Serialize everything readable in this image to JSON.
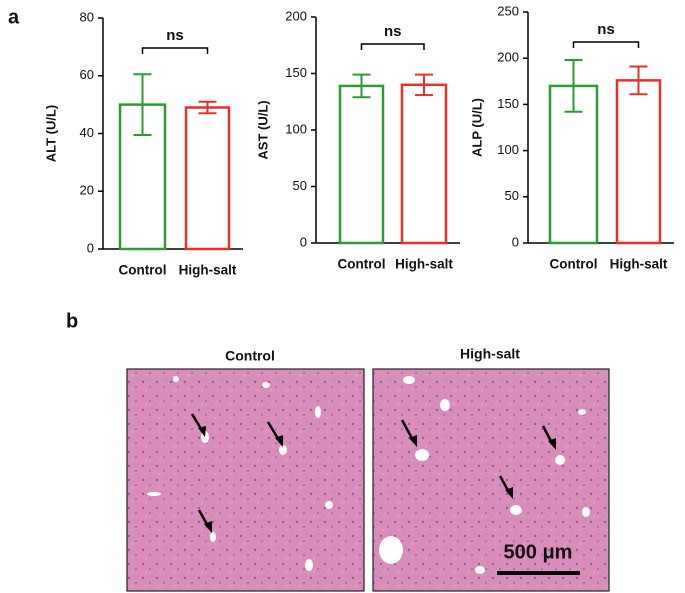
{
  "chart_data": [
    {
      "type": "bar",
      "ylabel": "ALT (U/L)",
      "categories": [
        "Control",
        "High-salt"
      ],
      "values": [
        50,
        49
      ],
      "errors": [
        10.5,
        2
      ],
      "colors": [
        "#2e9a34",
        "#e8302a"
      ],
      "ylim": [
        0,
        80
      ],
      "yticks": [
        0,
        20,
        40,
        60,
        80
      ],
      "annotation": "ns"
    },
    {
      "type": "bar",
      "ylabel": "AST (U/L)",
      "categories": [
        "Control",
        "High-salt"
      ],
      "values": [
        139,
        140
      ],
      "errors": [
        10,
        9
      ],
      "colors": [
        "#2e9a34",
        "#e8302a"
      ],
      "ylim": [
        0,
        200
      ],
      "yticks": [
        0,
        50,
        100,
        150,
        200
      ],
      "annotation": "ns"
    },
    {
      "type": "bar",
      "ylabel": "ALP (U/L)",
      "categories": [
        "Control",
        "High-salt"
      ],
      "values": [
        170,
        176
      ],
      "errors": [
        28,
        15
      ],
      "colors": [
        "#2e9a34",
        "#e8302a"
      ],
      "ylim": [
        0,
        250
      ],
      "yticks": [
        0,
        50,
        100,
        150,
        200,
        250
      ],
      "annotation": "ns"
    }
  ],
  "panel_labels": [
    "a",
    "b"
  ],
  "histology": {
    "labels": [
      "Control",
      "High-salt"
    ],
    "scale_bar": "500 μm"
  }
}
